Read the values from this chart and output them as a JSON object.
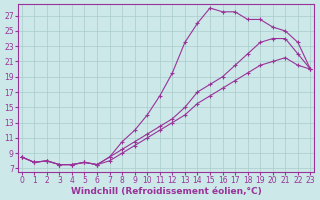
{
  "xlabel": "Windchill (Refroidissement éolien,°C)",
  "bg_color": "#cce8e8",
  "grid_color": "#aacccc",
  "line_color": "#993399",
  "xlim": [
    -0.3,
    23.3
  ],
  "ylim": [
    6.5,
    28.5
  ],
  "xticks": [
    0,
    1,
    2,
    3,
    4,
    5,
    6,
    7,
    8,
    9,
    10,
    11,
    12,
    13,
    14,
    15,
    16,
    17,
    18,
    19,
    20,
    21,
    22,
    23
  ],
  "yticks": [
    7,
    9,
    11,
    13,
    15,
    17,
    19,
    21,
    23,
    25,
    27
  ],
  "line1_x": [
    0,
    1,
    2,
    3,
    4,
    5,
    6,
    7,
    8,
    9,
    10,
    11,
    12,
    13,
    14,
    15,
    16,
    17,
    18,
    19,
    20,
    21,
    22,
    23
  ],
  "line1_y": [
    8.5,
    7.8,
    8.0,
    7.5,
    7.5,
    7.8,
    7.5,
    8.5,
    10.5,
    12.0,
    14.0,
    16.5,
    19.5,
    23.5,
    26.0,
    28.0,
    27.5,
    27.5,
    26.5,
    26.5,
    25.5,
    25.0,
    23.5,
    20.0
  ],
  "line2_x": [
    0,
    1,
    2,
    3,
    4,
    5,
    6,
    7,
    8,
    9,
    10,
    11,
    12,
    13,
    14,
    15,
    16,
    17,
    18,
    19,
    20,
    21,
    22,
    23
  ],
  "line2_y": [
    8.5,
    7.8,
    8.0,
    7.5,
    7.5,
    7.8,
    7.5,
    8.5,
    9.5,
    10.5,
    11.5,
    12.5,
    13.5,
    15.0,
    17.0,
    18.0,
    19.0,
    20.5,
    22.0,
    23.5,
    24.0,
    24.0,
    22.0,
    20.0
  ],
  "line3_x": [
    0,
    1,
    2,
    3,
    4,
    5,
    6,
    7,
    8,
    9,
    10,
    11,
    12,
    13,
    14,
    15,
    16,
    17,
    18,
    19,
    20,
    21,
    22,
    23
  ],
  "line3_y": [
    8.5,
    7.8,
    8.0,
    7.5,
    7.5,
    7.8,
    7.5,
    8.0,
    9.0,
    10.0,
    11.0,
    12.0,
    13.0,
    14.0,
    15.5,
    16.5,
    17.5,
    18.5,
    19.5,
    20.5,
    21.0,
    21.5,
    20.5,
    20.0
  ],
  "tick_fontsize": 5.5,
  "xlabel_fontsize": 6.5
}
